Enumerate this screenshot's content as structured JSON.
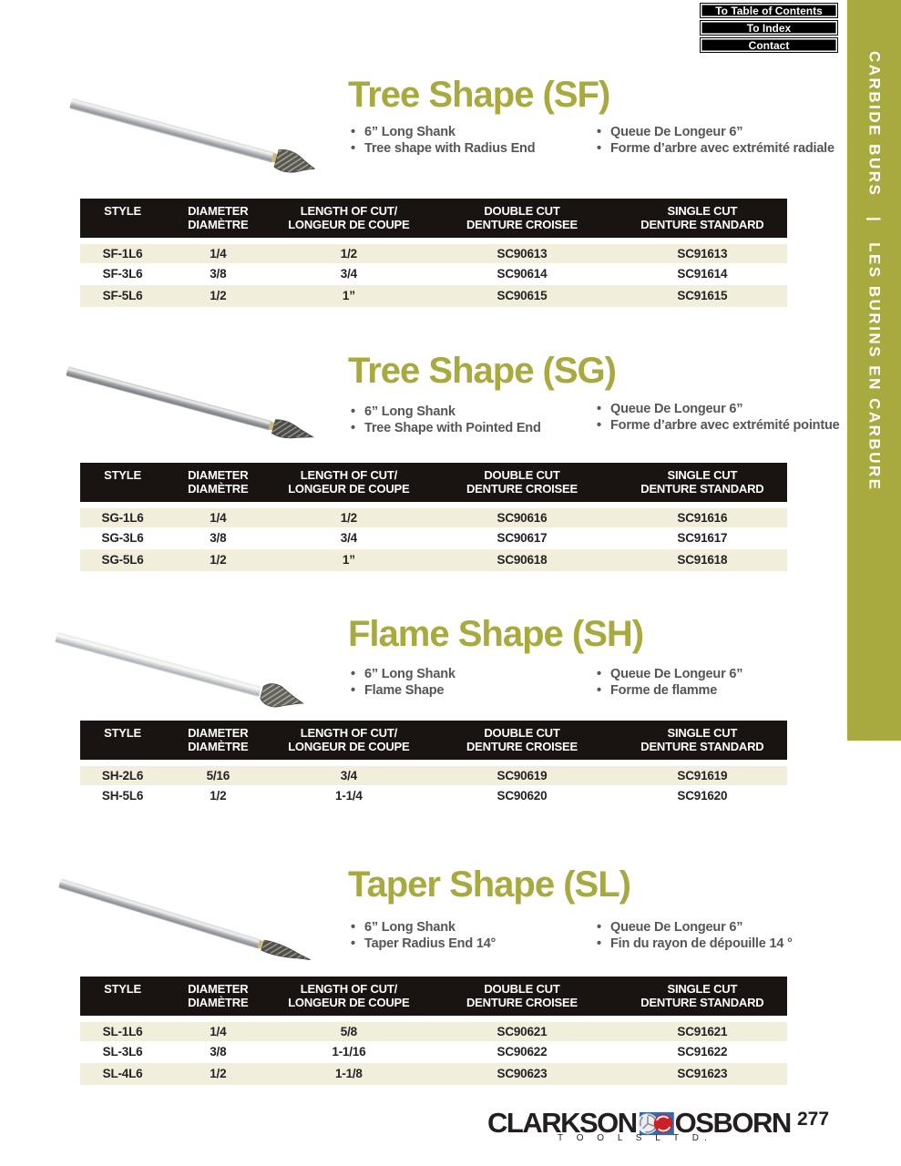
{
  "colors": {
    "accent_olive": "#a8a93e",
    "header_black": "#191412",
    "row_beige": "#f2eedc"
  },
  "nav": {
    "buttons": [
      {
        "label": "To Table of Contents"
      },
      {
        "label": "To Index"
      },
      {
        "label": "Contact"
      }
    ]
  },
  "sidebar": {
    "text_en": "CARBIDE BURS",
    "separator": "|",
    "text_fr": "LES BURINS EN CARBURE"
  },
  "table_headers": [
    {
      "line1": "STYLE",
      "line2": ""
    },
    {
      "line1": "DIAMETER",
      "line2": "DIAMÈTRE"
    },
    {
      "line1": "LENGTH OF CUT/",
      "line2": "LONGEUR DE COUPE"
    },
    {
      "line1": "DOUBLE CUT",
      "line2": "DENTURE CROISEE"
    },
    {
      "line1": "SINGLE CUT",
      "line2": "DENTURE STANDARD"
    }
  ],
  "sections": [
    {
      "title": "Tree Shape (SF)",
      "bullets_en": [
        "6” Long Shank",
        "Tree shape with Radius End"
      ],
      "bullets_fr": [
        "Queue De Longeur 6”",
        "Forme d’arbre avec extrémité radiale"
      ],
      "rows": [
        [
          "SF-1L6",
          "1/4",
          "1/2",
          "SC90613",
          "SC91613"
        ],
        [
          "SF-3L6",
          "3/8",
          "3/4",
          "SC90614",
          "SC91614"
        ],
        [
          "SF-5L6",
          "1/2",
          "1”",
          "SC90615",
          "SC91615"
        ]
      ]
    },
    {
      "title": "Tree Shape (SG)",
      "bullets_en": [
        "6” Long Shank",
        "Tree Shape with Pointed End"
      ],
      "bullets_fr": [
        "Queue De Longeur 6”",
        "Forme d’arbre avec extrémité pointue"
      ],
      "rows": [
        [
          "SG-1L6",
          "1/4",
          "1/2",
          "SC90616",
          "SC91616"
        ],
        [
          "SG-3L6",
          "3/8",
          "3/4",
          "SC90617",
          "SC91617"
        ],
        [
          "SG-5L6",
          "1/2",
          "1”",
          "SC90618",
          "SC91618"
        ]
      ]
    },
    {
      "title": "Flame Shape (SH)",
      "bullets_en": [
        "6” Long Shank",
        "Flame Shape"
      ],
      "bullets_fr": [
        "Queue De Longeur 6”",
        "Forme de flamme"
      ],
      "rows": [
        [
          "SH-2L6",
          "5/16",
          "3/4",
          "SC90619",
          "SC91619"
        ],
        [
          "SH-5L6",
          "1/2",
          "1-1/4",
          "SC90620",
          "SC91620"
        ]
      ]
    },
    {
      "title": "Taper Shape (SL)",
      "bullets_en": [
        "6” Long Shank",
        "Taper Radius End 14°"
      ],
      "bullets_fr": [
        "Queue De Longeur 6”",
        "Fin du rayon de dépouille 14 °"
      ],
      "rows": [
        [
          "SL-1L6",
          "1/4",
          "5/8",
          "SC90621",
          "SC91621"
        ],
        [
          "SL-3L6",
          "3/8",
          "1-1/16",
          "SC90622",
          "SC91622"
        ],
        [
          "SL-4L6",
          "1/2",
          "1-1/8",
          "SC90623",
          "SC91623"
        ]
      ]
    }
  ],
  "footer": {
    "brand_left": "CLARKSON",
    "brand_right": "OSBORN",
    "brand_sub": "T O O L S   L T D.",
    "page_number": "277"
  }
}
